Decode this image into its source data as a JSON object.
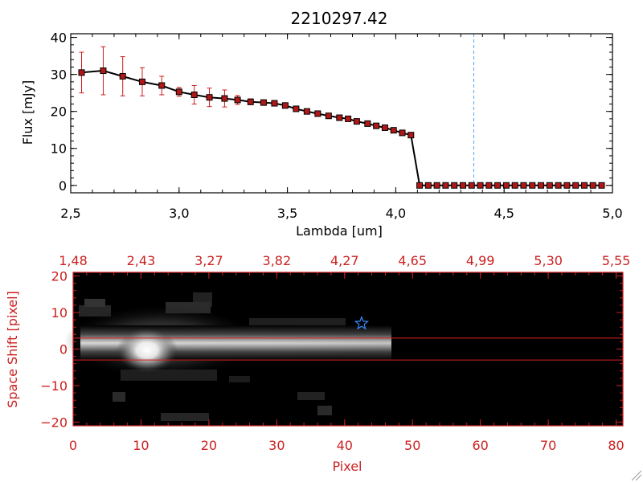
{
  "title": "2210297.42",
  "chart_data": [
    {
      "type": "line",
      "xlabel": "Lambda [um]",
      "ylabel": "Flux [mJy]",
      "xlim": [
        2.5,
        5.0
      ],
      "ylim": [
        -2,
        41
      ],
      "x_ticks": [
        2.5,
        3.0,
        3.5,
        4.0,
        4.5,
        5.0
      ],
      "x_tick_labels": [
        "2,5",
        "3,0",
        "3,5",
        "4,0",
        "4,5",
        "5,0"
      ],
      "y_ticks": [
        0,
        10,
        20,
        30,
        40
      ],
      "y_tick_labels": [
        "0",
        "10",
        "20",
        "30",
        "40"
      ],
      "reference_line_x": 4.36,
      "series": [
        {
          "x": [
            2.55,
            2.65,
            2.74,
            2.83,
            2.92,
            3.0,
            3.07,
            3.14,
            3.21,
            3.27,
            3.33,
            3.39,
            3.44,
            3.49,
            3.54,
            3.59,
            3.64,
            3.69,
            3.74,
            3.78,
            3.82,
            3.87,
            3.91,
            3.95,
            3.99,
            4.03,
            4.07,
            4.11,
            4.15,
            4.19,
            4.23,
            4.27,
            4.31,
            4.35,
            4.39,
            4.43,
            4.47,
            4.51,
            4.55,
            4.59,
            4.63,
            4.67,
            4.71,
            4.75,
            4.79,
            4.83,
            4.87,
            4.91,
            4.95
          ],
          "values": [
            30.5,
            31,
            29.5,
            28,
            27,
            25.3,
            24.5,
            23.8,
            23.5,
            23.1,
            22.6,
            22.4,
            22.2,
            21.6,
            20.7,
            20,
            19.4,
            18.8,
            18.3,
            18,
            17.3,
            16.7,
            16.1,
            15.6,
            14.9,
            14.2,
            13.6,
            0,
            0,
            0,
            0,
            0,
            0,
            0,
            0,
            0,
            0,
            0,
            0,
            0,
            0,
            0,
            0,
            0,
            0,
            0,
            0,
            0,
            0
          ],
          "errors": [
            5.5,
            6.5,
            5.3,
            3.8,
            2.5,
            1.2,
            2.5,
            2.5,
            2.3,
            1.2,
            0.8,
            0.5,
            0.4,
            0.4,
            0.4,
            0.4,
            0.4,
            0.4,
            0.4,
            0.4,
            0.4,
            0.4,
            0.4,
            0.4,
            0.4,
            0.4,
            0.4,
            0,
            0,
            0,
            0,
            0,
            0,
            0,
            0,
            0,
            0,
            0,
            0,
            0,
            0,
            0,
            0,
            0,
            0,
            0,
            0,
            0,
            0
          ]
        }
      ],
      "grid": false,
      "colors": {
        "line": "#000000",
        "marker": "#b01818",
        "errorbar": "#cc1c1c",
        "reference_line": "#4da3ff"
      }
    },
    {
      "type": "heatmap",
      "xlabel": "Pixel",
      "ylabel": "Space Shift [pixel]",
      "xlim": [
        0,
        81
      ],
      "ylim": [
        -21,
        21
      ],
      "x_ticks": [
        0,
        10,
        20,
        30,
        40,
        50,
        60,
        70,
        80
      ],
      "x_tick_labels": [
        "0",
        "10",
        "20",
        "30",
        "40",
        "50",
        "60",
        "70",
        "80"
      ],
      "y_ticks": [
        -20,
        -10,
        0,
        10,
        20
      ],
      "y_tick_labels": [
        "−20",
        "−10",
        "0",
        "10",
        "20"
      ],
      "top_axis_labels": [
        "1,48",
        "2,43",
        "3,27",
        "3,82",
        "4,27",
        "4,65",
        "4,99",
        "5,30",
        "5,55"
      ],
      "aperture_lines_y": [
        3,
        -3
      ],
      "star_marker": {
        "x": 42.5,
        "y": 7
      },
      "spectrum_trace": {
        "x_start": 1,
        "x_end": 47,
        "peak_x": 11.5,
        "center_y": 0
      },
      "colors": {
        "axis": "#cc2020",
        "aperture": "#dd2222",
        "star": "#3b8bff",
        "background": "#000000"
      }
    }
  ]
}
